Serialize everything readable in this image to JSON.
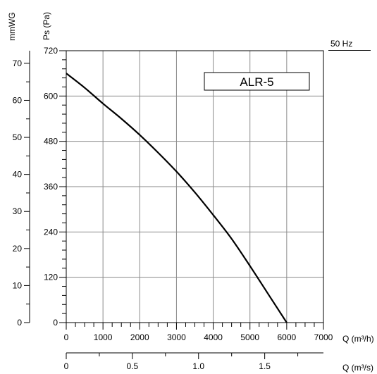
{
  "chart_data": {
    "type": "line",
    "title": "",
    "model_label": "ALR-5",
    "frequency_label": "50 Hz",
    "left_axis_label": "mmWG",
    "ylabel": "Ps (Pa)",
    "xlabel": "Q (m³/h)",
    "xlabel2": "Q (m³/s)",
    "xlim": [
      0,
      7000
    ],
    "ylim": [
      0,
      720
    ],
    "x2lim": [
      0,
      1.944
    ],
    "mmwg_lim": [
      0,
      73.4
    ],
    "grid": true,
    "x_ticks": [
      {
        "value": 0,
        "label": "0"
      },
      {
        "value": 1000,
        "label": "1000"
      },
      {
        "value": 2000,
        "label": "2000"
      },
      {
        "value": 3000,
        "label": "3000"
      },
      {
        "value": 4000,
        "label": "4000"
      },
      {
        "value": 5000,
        "label": "5000"
      },
      {
        "value": 6000,
        "label": "6000"
      },
      {
        "value": 7000,
        "label": "7000"
      }
    ],
    "y_ticks": [
      {
        "value": 0,
        "label": "0"
      },
      {
        "value": 120,
        "label": "120"
      },
      {
        "value": 240,
        "label": "240"
      },
      {
        "value": 360,
        "label": "360"
      },
      {
        "value": 480,
        "label": "480"
      },
      {
        "value": 600,
        "label": "600"
      },
      {
        "value": 720,
        "label": "720"
      }
    ],
    "mmwg_ticks": [
      {
        "value": 0,
        "label": "0"
      },
      {
        "value": 10,
        "label": "10"
      },
      {
        "value": 20,
        "label": "20"
      },
      {
        "value": 30,
        "label": "30"
      },
      {
        "value": 40,
        "label": "40"
      },
      {
        "value": 50,
        "label": "50"
      },
      {
        "value": 60,
        "label": "60"
      },
      {
        "value": 70,
        "label": "70"
      }
    ],
    "x2_ticks": [
      {
        "value": 0,
        "label": "0"
      },
      {
        "value": 0.5,
        "label": "0.5"
      },
      {
        "value": 1.0,
        "label": "1.0"
      },
      {
        "value": 1.5,
        "label": "1.5"
      }
    ],
    "series": [
      {
        "x": [
          0,
          500,
          1000,
          1500,
          2000,
          2500,
          3000,
          3500,
          4000,
          4500,
          5000,
          5500,
          6000
        ],
        "y": [
          660,
          622,
          580,
          540,
          497,
          450,
          400,
          345,
          285,
          222,
          150,
          75,
          0
        ]
      }
    ]
  }
}
